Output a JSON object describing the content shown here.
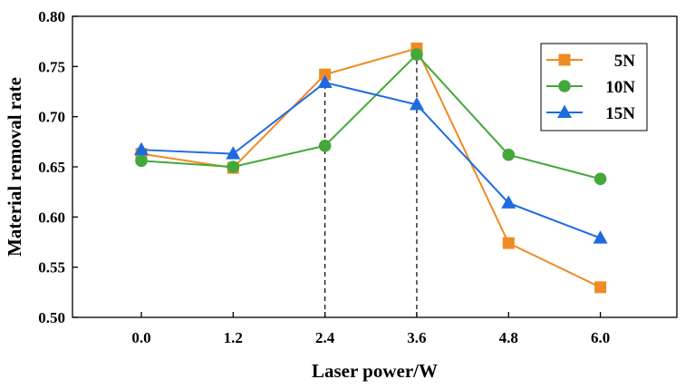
{
  "chart_data": {
    "type": "line",
    "title": "",
    "xlabel": "Laser power/W",
    "ylabel": "Material removal rate",
    "x": [
      0.0,
      1.2,
      2.4,
      3.6,
      4.8,
      6.0
    ],
    "x_tick_labels": [
      "0.0",
      "1.2",
      "2.4",
      "3.6",
      "4.8",
      "6.0"
    ],
    "xlim": [
      -0.9,
      7.0
    ],
    "ylim": [
      0.5,
      0.8
    ],
    "y_ticks": [
      0.5,
      0.55,
      0.6,
      0.65,
      0.7,
      0.75,
      0.8
    ],
    "y_tick_labels": [
      "0.50",
      "0.55",
      "0.60",
      "0.65",
      "0.70",
      "0.75",
      "0.80"
    ],
    "grid": false,
    "legend_position": "top-right",
    "reference_lines_x": [
      2.4,
      3.6
    ],
    "series": [
      {
        "name": "5N",
        "marker": "square",
        "color": "#F08A24",
        "values": [
          0.663,
          0.649,
          0.742,
          0.768,
          0.574,
          0.53
        ]
      },
      {
        "name": "10N",
        "marker": "circle",
        "color": "#43A83A",
        "values": [
          0.656,
          0.65,
          0.671,
          0.762,
          0.662,
          0.638
        ]
      },
      {
        "name": "15N",
        "marker": "triangle",
        "color": "#1E6BE0",
        "values": [
          0.667,
          0.663,
          0.734,
          0.712,
          0.614,
          0.579
        ]
      }
    ]
  }
}
